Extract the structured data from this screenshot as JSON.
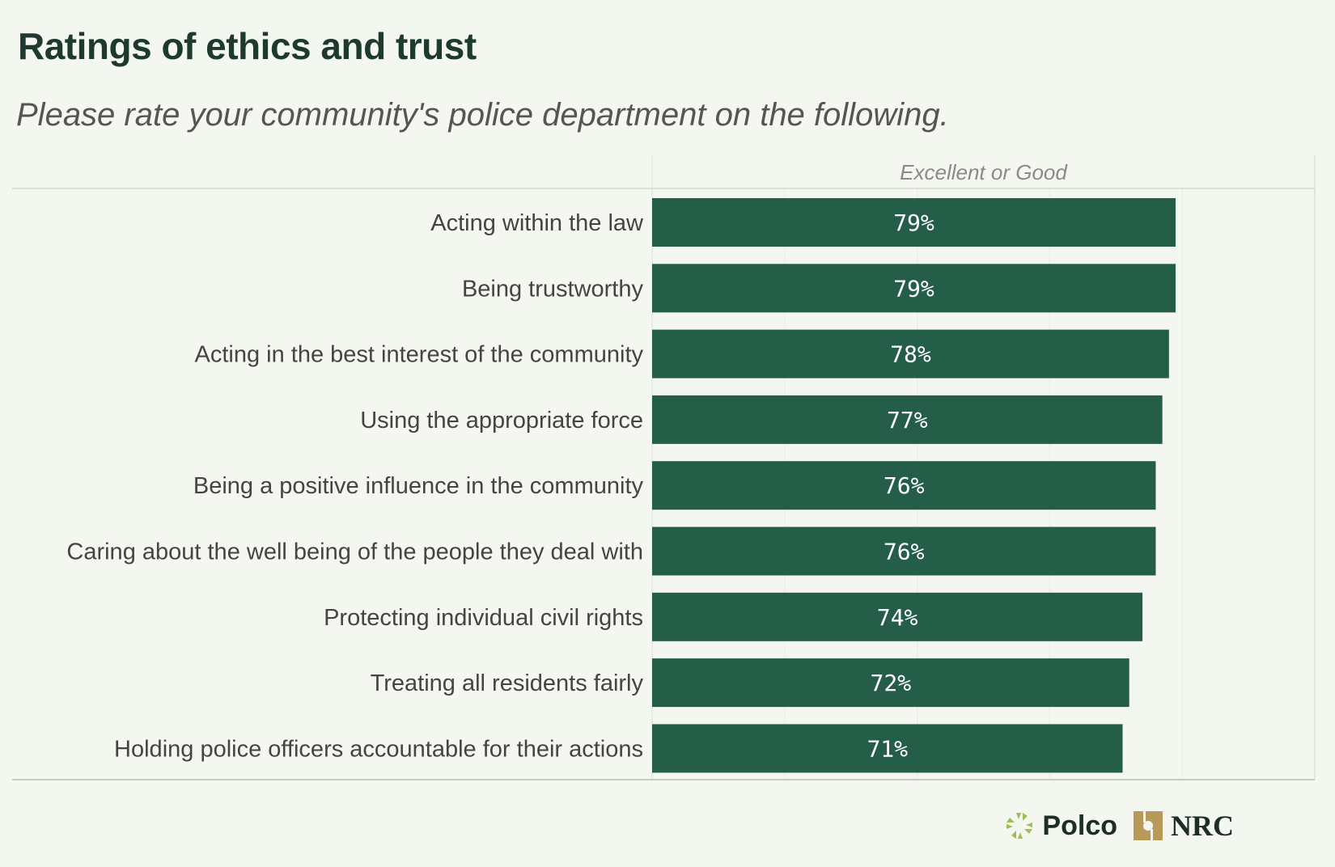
{
  "title": "Ratings of ethics and trust",
  "subtitle": "Please rate your community's police department on the following.",
  "logo": {
    "polco": "Polco",
    "nrc": "NRC"
  },
  "chart_data": {
    "type": "bar",
    "orientation": "horizontal",
    "column_header": "Excellent or Good",
    "categories": [
      "Acting within the law",
      "Being trustworthy",
      "Acting in the best interest of the community",
      "Using the appropriate force",
      "Being a positive influence in the community",
      "Caring about the well being of the people they deal with",
      "Protecting individual civil rights",
      "Treating all residents fairly",
      "Holding police officers accountable for their actions"
    ],
    "values": [
      79,
      79,
      78,
      77,
      76,
      76,
      74,
      72,
      71
    ],
    "value_labels": [
      "79%",
      "79%",
      "78%",
      "77%",
      "76%",
      "76%",
      "74%",
      "72%",
      "71%"
    ],
    "xlim": [
      0,
      100
    ],
    "gridlines": [
      20,
      40,
      60,
      80
    ],
    "bar_color": "#255e48"
  }
}
